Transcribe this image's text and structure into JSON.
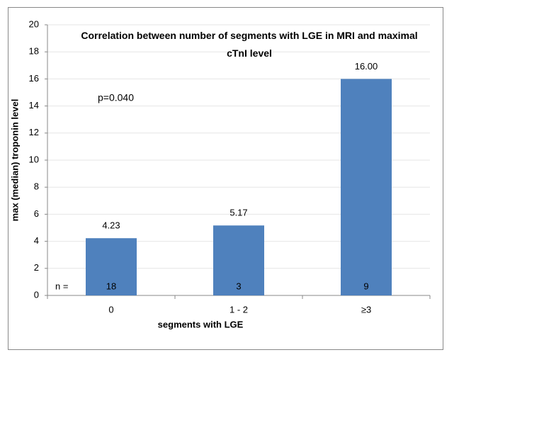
{
  "chart_data": {
    "type": "bar",
    "title": "Correlation between number of segments with LGE in MRI and maximal cTnI level",
    "x_label": "segments with LGE",
    "y_label": "max (median) troponin level",
    "categories": [
      "0",
      "1 - 2",
      "≥3"
    ],
    "values": [
      4.23,
      5.17,
      16
    ],
    "value_labels": [
      "4.23",
      "5.17",
      "16.00"
    ],
    "color": "#4f81bd",
    "ylim": [
      0,
      20
    ],
    "yticks": [
      0,
      2,
      4,
      6,
      8,
      10,
      12,
      14,
      16,
      18,
      20
    ],
    "grid": true,
    "annotation": "p=0.040",
    "n_label": "n =",
    "n_values": [
      18,
      3,
      9
    ]
  }
}
